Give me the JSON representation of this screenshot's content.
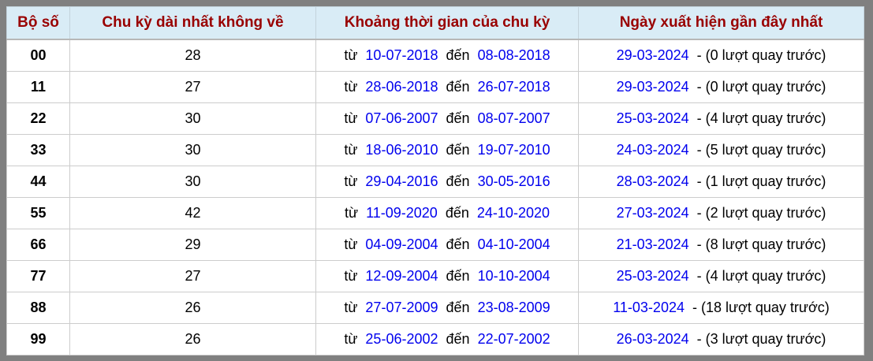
{
  "colors": {
    "frame_gray": "#808080",
    "header_bg": "#d9ecf6",
    "header_text": "#990000",
    "link_blue": "#0000ee",
    "cell_border": "#cccccc"
  },
  "table": {
    "headers": [
      "Bộ số",
      "Chu kỳ dài nhất không về",
      "Khoảng thời gian của chu kỳ",
      "Ngày xuất hiện gần đây nhất"
    ],
    "labels": {
      "from_label": "từ",
      "to_label": "đến"
    },
    "rows": [
      {
        "pair": "00",
        "cycle": "28",
        "from_date": "10-07-2018",
        "to_date": "08-08-2018",
        "recent_date": "29-03-2024",
        "recent_note": "- (0 lượt quay trước)"
      },
      {
        "pair": "11",
        "cycle": "27",
        "from_date": "28-06-2018",
        "to_date": "26-07-2018",
        "recent_date": "29-03-2024",
        "recent_note": "- (0 lượt quay trước)"
      },
      {
        "pair": "22",
        "cycle": "30",
        "from_date": "07-06-2007",
        "to_date": "08-07-2007",
        "recent_date": "25-03-2024",
        "recent_note": "- (4 lượt quay trước)"
      },
      {
        "pair": "33",
        "cycle": "30",
        "from_date": "18-06-2010",
        "to_date": "19-07-2010",
        "recent_date": "24-03-2024",
        "recent_note": "- (5 lượt quay trước)"
      },
      {
        "pair": "44",
        "cycle": "30",
        "from_date": "29-04-2016",
        "to_date": "30-05-2016",
        "recent_date": "28-03-2024",
        "recent_note": "- (1 lượt quay trước)"
      },
      {
        "pair": "55",
        "cycle": "42",
        "from_date": "11-09-2020",
        "to_date": "24-10-2020",
        "recent_date": "27-03-2024",
        "recent_note": "- (2 lượt quay trước)"
      },
      {
        "pair": "66",
        "cycle": "29",
        "from_date": "04-09-2004",
        "to_date": "04-10-2004",
        "recent_date": "21-03-2024",
        "recent_note": "- (8 lượt quay trước)"
      },
      {
        "pair": "77",
        "cycle": "27",
        "from_date": "12-09-2004",
        "to_date": "10-10-2004",
        "recent_date": "25-03-2024",
        "recent_note": "- (4 lượt quay trước)"
      },
      {
        "pair": "88",
        "cycle": "26",
        "from_date": "27-07-2009",
        "to_date": "23-08-2009",
        "recent_date": "11-03-2024",
        "recent_note": "- (18 lượt quay trước)"
      },
      {
        "pair": "99",
        "cycle": "26",
        "from_date": "25-06-2002",
        "to_date": "22-07-2002",
        "recent_date": "26-03-2024",
        "recent_note": "- (3 lượt quay trước)"
      }
    ]
  }
}
